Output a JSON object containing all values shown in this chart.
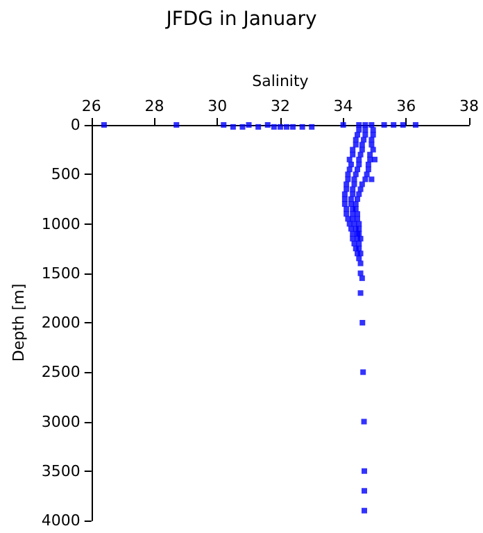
{
  "chart_data": {
    "type": "scatter",
    "title": "JFDG in January",
    "xlabel": "Salinity",
    "ylabel": "Depth [m]",
    "xlim": [
      26,
      38
    ],
    "xticks": [
      26,
      28,
      30,
      32,
      34,
      36,
      38
    ],
    "ylim": [
      4000,
      0
    ],
    "yticks": [
      0,
      500,
      1000,
      1500,
      2000,
      2500,
      3000,
      3500,
      4000
    ],
    "grid": false,
    "marker": "square",
    "series": [
      {
        "color": "#0000ff",
        "x": [
          26.4,
          28.7,
          30.2,
          30.5,
          30.8,
          31.0,
          31.3,
          31.6,
          31.8,
          32.0,
          32.2,
          32.4,
          32.7,
          33.0,
          34.0,
          35.3,
          35.6,
          35.9,
          36.3,
          34.5,
          34.7,
          34.9,
          34.5,
          34.7,
          34.95,
          34.45,
          34.7,
          34.95,
          34.4,
          34.65,
          34.9,
          34.4,
          34.6,
          34.9,
          34.3,
          34.6,
          34.95,
          34.3,
          34.55,
          34.85,
          34.2,
          34.5,
          34.85,
          35.0,
          34.25,
          34.5,
          34.8,
          34.2,
          34.45,
          34.8,
          34.15,
          34.4,
          34.75,
          34.15,
          34.35,
          34.7,
          34.9,
          34.1,
          34.35,
          34.6,
          34.1,
          34.3,
          34.55,
          34.05,
          34.3,
          34.5,
          34.05,
          34.25,
          34.45,
          34.05,
          34.25,
          34.4,
          34.1,
          34.3,
          34.4,
          34.1,
          34.3,
          34.45,
          34.15,
          34.3,
          34.45,
          34.2,
          34.35,
          34.5,
          34.25,
          34.4,
          34.5,
          34.3,
          34.45,
          34.5,
          34.3,
          34.45,
          34.55,
          34.35,
          34.5,
          34.4,
          34.5,
          34.45,
          34.55,
          34.5,
          34.55,
          34.55,
          34.6,
          34.55,
          34.61,
          34.63,
          34.66,
          34.67,
          34.67,
          34.67
        ],
        "values": [
          0,
          0,
          0,
          20,
          20,
          0,
          20,
          0,
          20,
          20,
          20,
          20,
          20,
          20,
          0,
          0,
          0,
          0,
          0,
          0,
          0,
          0,
          50,
          50,
          50,
          100,
          100,
          100,
          150,
          150,
          150,
          200,
          200,
          200,
          250,
          250,
          250,
          300,
          300,
          300,
          350,
          350,
          350,
          350,
          400,
          400,
          400,
          450,
          450,
          450,
          500,
          500,
          500,
          550,
          550,
          550,
          550,
          600,
          600,
          600,
          650,
          650,
          650,
          700,
          700,
          700,
          750,
          750,
          750,
          800,
          800,
          800,
          850,
          850,
          850,
          900,
          900,
          900,
          950,
          950,
          950,
          1000,
          1000,
          1000,
          1050,
          1050,
          1050,
          1100,
          1100,
          1100,
          1150,
          1150,
          1150,
          1200,
          1200,
          1250,
          1250,
          1300,
          1300,
          1350,
          1400,
          1500,
          1550,
          1700,
          2000,
          2500,
          3000,
          3500,
          3700,
          3900
        ]
      }
    ]
  }
}
